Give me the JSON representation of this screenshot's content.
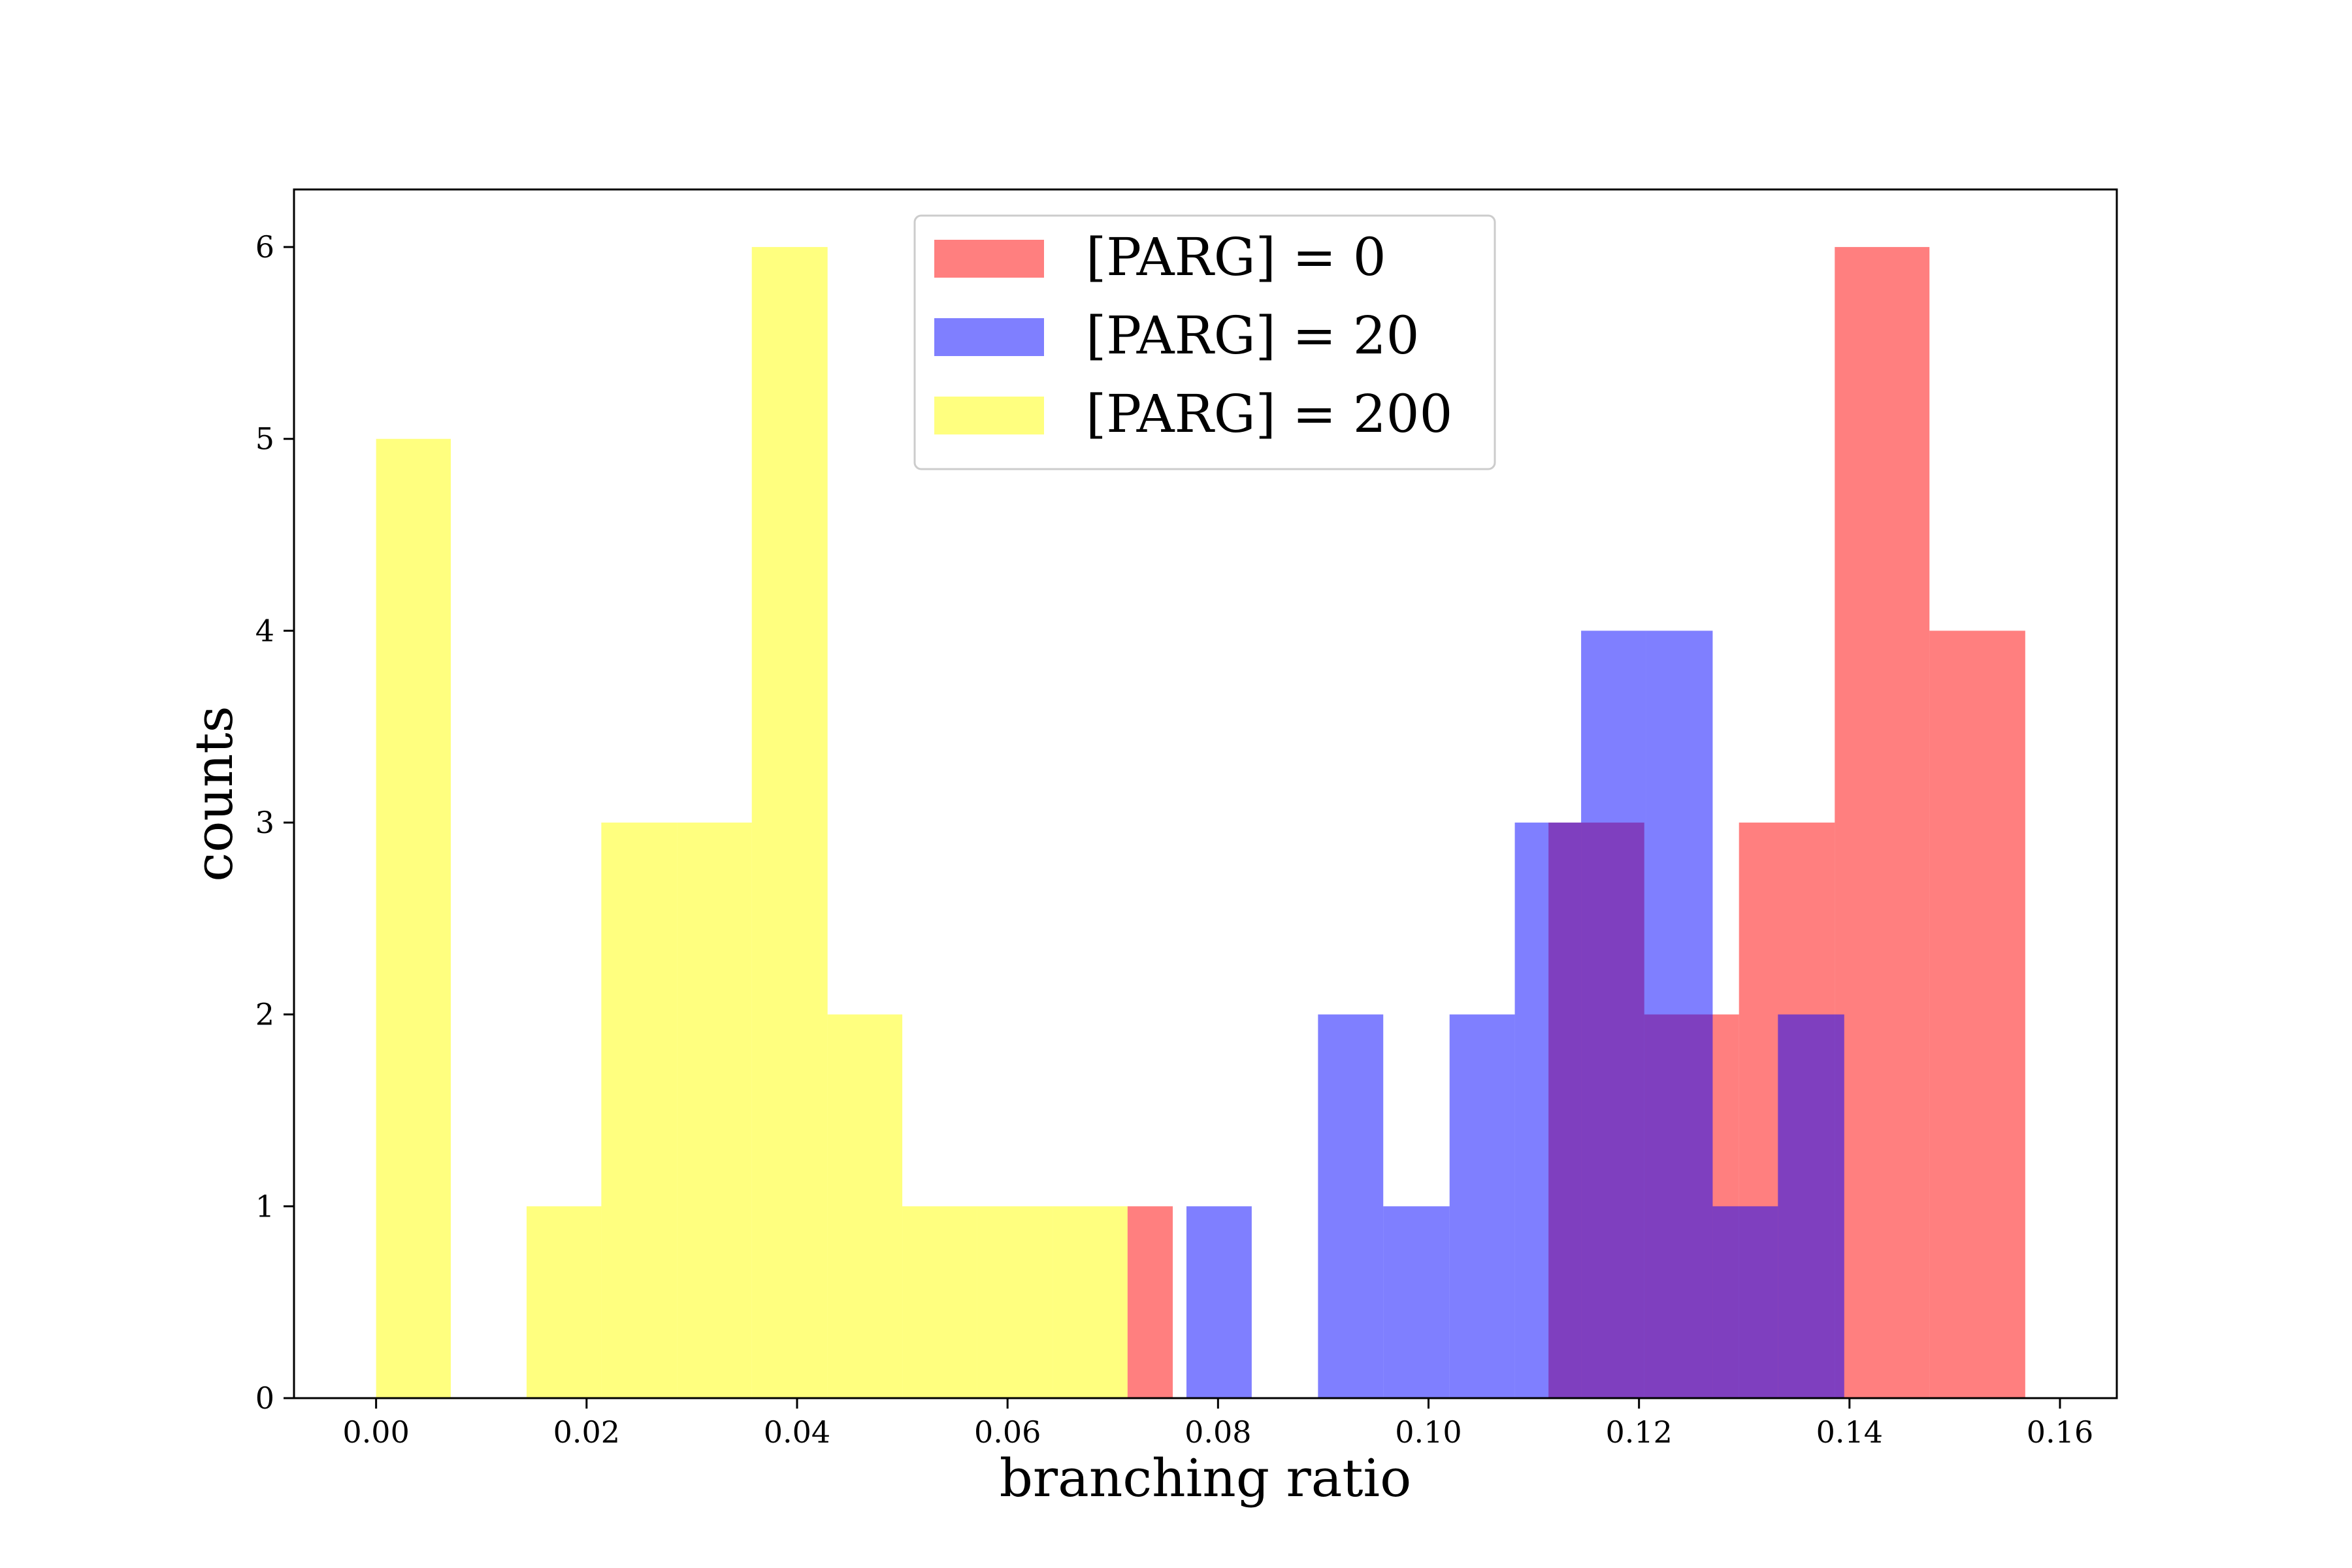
{
  "chart_data": {
    "type": "bar",
    "title": "",
    "xlabel": "branching ratio",
    "ylabel": "counts",
    "xlim": [
      -0.0078,
      0.1654
    ],
    "ylim": [
      0,
      6.3
    ],
    "grid": false,
    "legend_position": "top-center",
    "x_ticks": [
      "0.00",
      "0.02",
      "0.04",
      "0.06",
      "0.08",
      "0.10",
      "0.12",
      "0.14",
      "0.16"
    ],
    "y_ticks": [
      "0",
      "1",
      "2",
      "3",
      "4",
      "5",
      "6"
    ],
    "series": [
      {
        "name": "[PARG] = 0",
        "color": "#ff0000",
        "opacity": 0.5,
        "bins": [
          {
            "x0": 0.0714,
            "x1": 0.0757,
            "count": 1
          },
          {
            "x0": 0.1114,
            "x1": 0.1205,
            "count": 3
          },
          {
            "x0": 0.1205,
            "x1": 0.1295,
            "count": 2
          },
          {
            "x0": 0.1295,
            "x1": 0.1386,
            "count": 3
          },
          {
            "x0": 0.1386,
            "x1": 0.1476,
            "count": 6
          },
          {
            "x0": 0.1476,
            "x1": 0.1567,
            "count": 4
          }
        ]
      },
      {
        "name": "[PARG] = 20",
        "color": "#0000ff",
        "opacity": 0.5,
        "bins": [
          {
            "x0": 0.077,
            "x1": 0.0832,
            "count": 1
          },
          {
            "x0": 0.0895,
            "x1": 0.0957,
            "count": 2
          },
          {
            "x0": 0.0957,
            "x1": 0.102,
            "count": 1
          },
          {
            "x0": 0.102,
            "x1": 0.1082,
            "count": 2
          },
          {
            "x0": 0.1082,
            "x1": 0.1145,
            "count": 3
          },
          {
            "x0": 0.1145,
            "x1": 0.1207,
            "count": 4
          },
          {
            "x0": 0.1207,
            "x1": 0.127,
            "count": 4
          },
          {
            "x0": 0.127,
            "x1": 0.1332,
            "count": 1
          },
          {
            "x0": 0.1332,
            "x1": 0.1395,
            "count": 2
          }
        ]
      },
      {
        "name": "[PARG] = 200",
        "color": "#ffff00",
        "opacity": 0.5,
        "bins": [
          {
            "x0": 0.0,
            "x1": 0.0071,
            "count": 5
          },
          {
            "x0": 0.0143,
            "x1": 0.0214,
            "count": 1
          },
          {
            "x0": 0.0214,
            "x1": 0.0286,
            "count": 3
          },
          {
            "x0": 0.0286,
            "x1": 0.0357,
            "count": 3
          },
          {
            "x0": 0.0357,
            "x1": 0.0429,
            "count": 6
          },
          {
            "x0": 0.0429,
            "x1": 0.05,
            "count": 2
          },
          {
            "x0": 0.05,
            "x1": 0.0571,
            "count": 1
          },
          {
            "x0": 0.0571,
            "x1": 0.0643,
            "count": 1
          },
          {
            "x0": 0.0643,
            "x1": 0.0714,
            "count": 1
          }
        ]
      }
    ]
  }
}
